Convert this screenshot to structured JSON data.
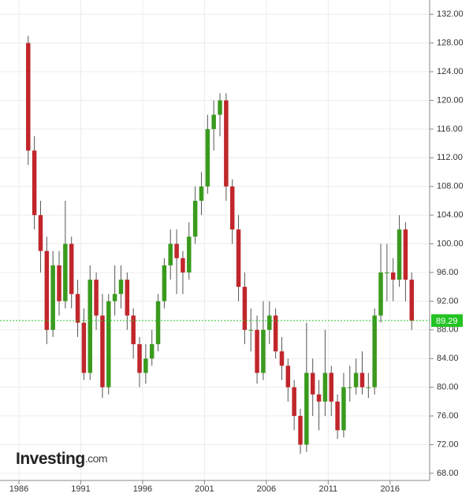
{
  "chart_data": {
    "type": "candlestick",
    "x": [
      1986.75,
      1987.25,
      1987.75,
      1988.25,
      1988.75,
      1989.25,
      1989.75,
      1990.25,
      1990.75,
      1991.25,
      1991.75,
      1992.25,
      1992.75,
      1993.25,
      1993.75,
      1994.25,
      1994.75,
      1995.25,
      1995.75,
      1996.25,
      1996.75,
      1997.25,
      1997.75,
      1998.25,
      1998.75,
      1999.25,
      1999.75,
      2000.25,
      2000.75,
      2001.25,
      2001.75,
      2002.25,
      2002.75,
      2003.25,
      2003.75,
      2004.25,
      2004.75,
      2005.25,
      2005.75,
      2006.25,
      2006.75,
      2007.25,
      2007.75,
      2008.25,
      2008.75,
      2009.25,
      2009.75,
      2010.25,
      2010.75,
      2011.25,
      2011.75,
      2012.25,
      2012.75,
      2013.25,
      2013.75,
      2014.25,
      2014.75,
      2015.25,
      2015.75,
      2016.25,
      2016.75,
      2017.25,
      2017.75
    ],
    "open": [
      128,
      113,
      104,
      99,
      88,
      97,
      92,
      100,
      93,
      89,
      82,
      95,
      90,
      80,
      92,
      93,
      95,
      90,
      86,
      82,
      84,
      86,
      92,
      97,
      100,
      98,
      96,
      101,
      106,
      108,
      116,
      118,
      120,
      108,
      102,
      94,
      88,
      88,
      82,
      88,
      90,
      85,
      83,
      80,
      76,
      72,
      82,
      79,
      78,
      82,
      78,
      74,
      80,
      80,
      82,
      80,
      80,
      90,
      96,
      96,
      95,
      102,
      95
    ],
    "high": [
      129,
      115,
      106,
      101,
      99,
      99,
      106,
      101,
      95,
      91,
      97,
      96,
      93,
      93,
      97,
      97,
      96,
      91,
      87,
      86,
      88,
      93,
      98,
      102,
      102,
      99,
      103,
      108,
      110,
      118,
      120,
      121,
      121,
      109,
      104,
      96,
      91,
      90,
      92,
      92,
      91,
      87,
      84,
      81,
      77,
      89,
      84,
      81,
      88,
      83,
      79,
      82,
      83,
      84,
      85,
      82,
      91,
      100,
      100,
      98,
      104,
      103,
      96
    ],
    "low": [
      111,
      102,
      96,
      86,
      87,
      90,
      91,
      91,
      87,
      81,
      81,
      88,
      78.5,
      79,
      90,
      91,
      88,
      84,
      80,
      80.5,
      83,
      85,
      91,
      95,
      93,
      93,
      95,
      100,
      104,
      107,
      113,
      115,
      106,
      100,
      92,
      86,
      85,
      80.5,
      81,
      86,
      84,
      81,
      78,
      74,
      70.7,
      71,
      76,
      74,
      76,
      76,
      72.8,
      73,
      78,
      79,
      79,
      78.5,
      79,
      89,
      92,
      92,
      94,
      92,
      88
    ],
    "close": [
      113,
      104,
      99,
      88,
      97,
      92,
      100,
      93,
      89,
      82,
      95,
      90,
      80,
      92,
      93,
      95,
      90,
      86,
      82,
      84,
      86,
      92,
      97,
      100,
      98,
      96,
      101,
      106,
      108,
      116,
      118,
      120,
      108,
      102,
      94,
      88,
      88,
      82,
      88,
      90,
      85,
      83,
      80,
      76,
      72,
      82,
      79,
      78,
      82,
      78,
      74,
      80,
      80,
      82,
      80,
      80,
      90,
      96,
      96,
      95,
      102,
      95,
      89.29
    ],
    "up_color": "#3a9a1e",
    "down_color": "#c0262b",
    "xlim": [
      1984.47,
      2019.2
    ],
    "xticks": [
      1986,
      1991,
      1996,
      2001,
      2006,
      2011,
      2016
    ],
    "ylim": [
      67,
      134
    ],
    "yticks": [
      {
        "value": 68,
        "label": "68.00"
      },
      {
        "value": 72,
        "label": "72.00"
      },
      {
        "value": 76,
        "label": "76.00"
      },
      {
        "value": 80,
        "label": "80.00"
      },
      {
        "value": 84,
        "label": "84.00"
      },
      {
        "value": 88,
        "label": "88.00"
      },
      {
        "value": 92,
        "label": "92.00"
      },
      {
        "value": 96,
        "label": "96.00"
      },
      {
        "value": 100,
        "label": "100.00"
      },
      {
        "value": 104,
        "label": "104.00"
      },
      {
        "value": 108,
        "label": "108.00"
      },
      {
        "value": 112,
        "label": "112.00"
      },
      {
        "value": 116,
        "label": "116.00"
      },
      {
        "value": 120,
        "label": "120.00"
      },
      {
        "value": 124,
        "label": "124.00"
      },
      {
        "value": 128,
        "label": "128.00"
      },
      {
        "value": 132,
        "label": "132.00"
      }
    ],
    "grid": true,
    "last_price": 89.29,
    "last_color": "#22c322",
    "logo": "Investing",
    "logo_suffix": ".com"
  }
}
